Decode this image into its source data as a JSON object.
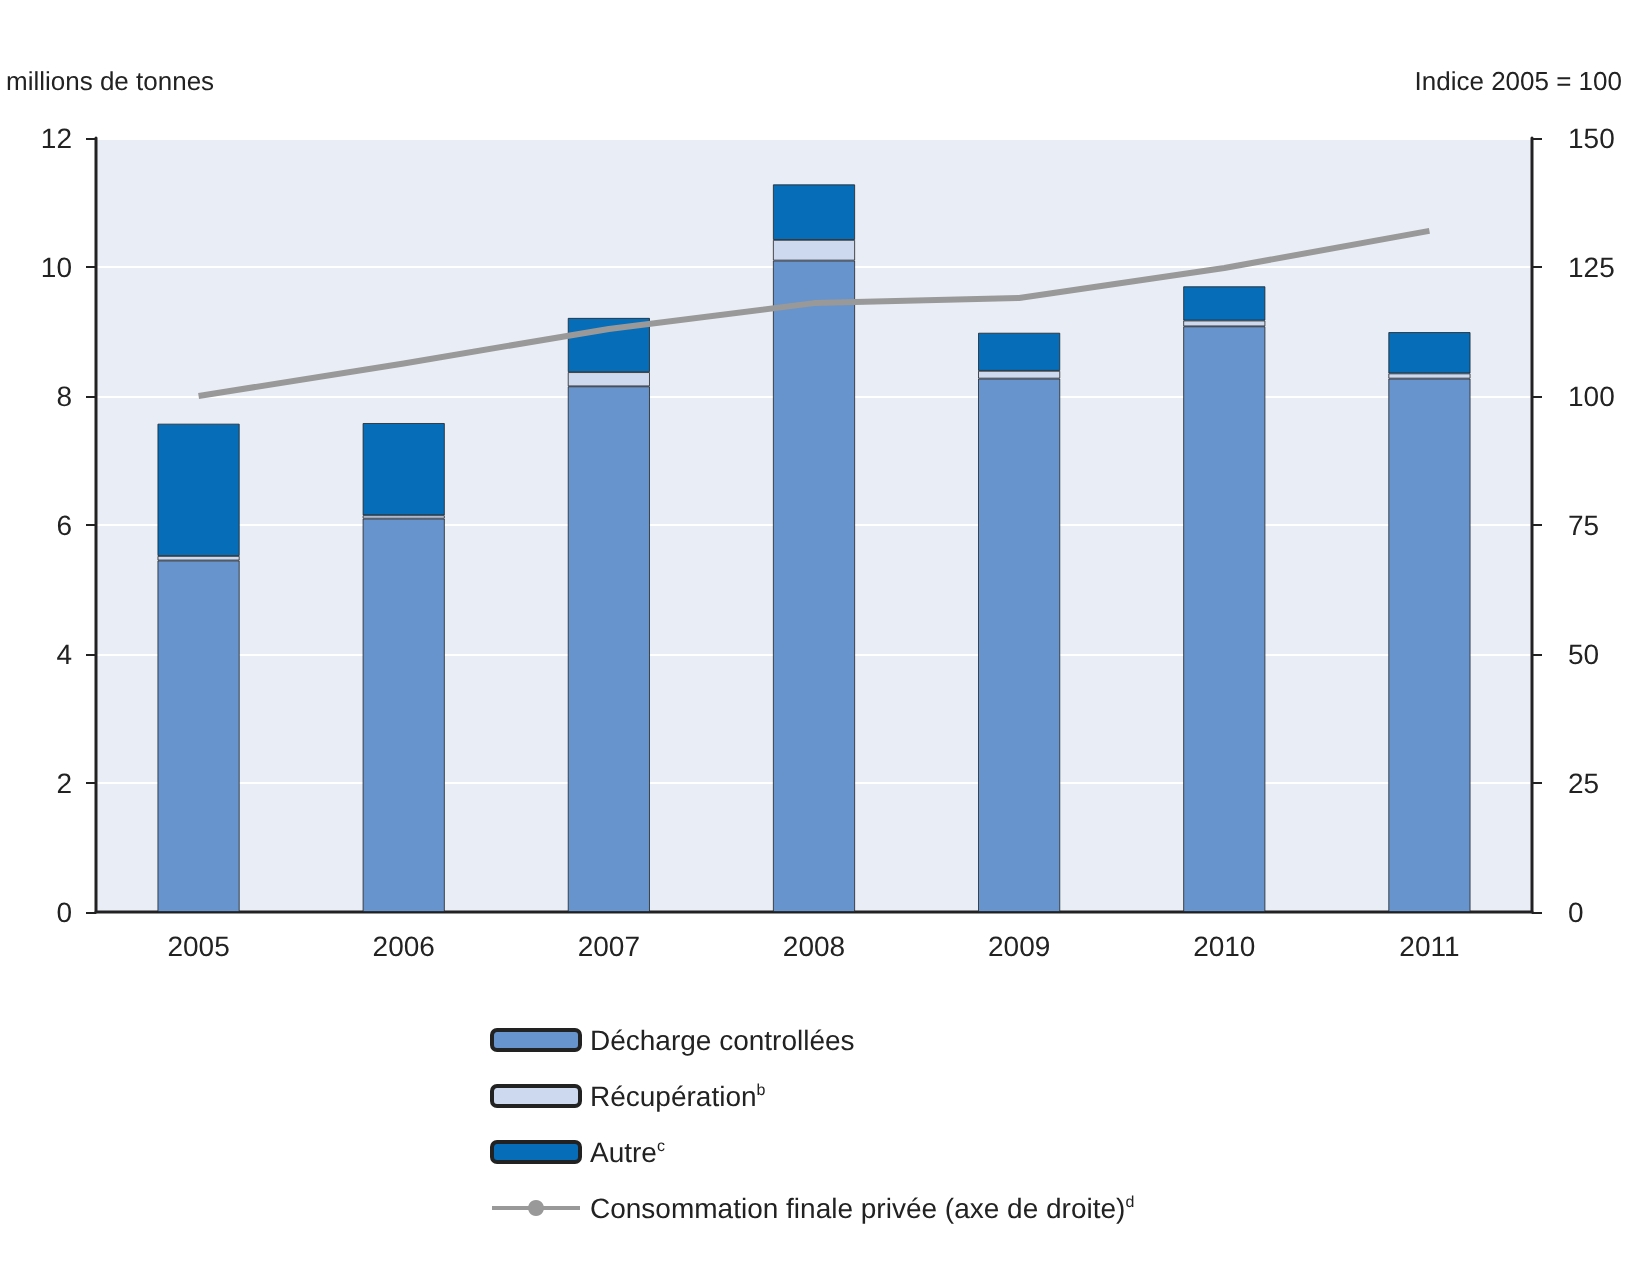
{
  "chart_data": {
    "type": "bar",
    "stacked": true,
    "ylabel": "millions de tonnes",
    "y2label": "Indice 2005 = 100",
    "categories": [
      "2005",
      "2006",
      "2007",
      "2008",
      "2009",
      "2010",
      "2011"
    ],
    "series": [
      {
        "name": "Décharge controllées",
        "color": "#6794cc",
        "values": [
          5.45,
          6.1,
          8.15,
          10.1,
          8.27,
          9.08,
          8.27
        ]
      },
      {
        "name": "Récupération$^{b}$",
        "color": "#cdd9ee",
        "values": [
          0.07,
          0.05,
          0.22,
          0.32,
          0.12,
          0.09,
          0.08
        ]
      },
      {
        "name": "Autre$^{c}$",
        "color": "#066db8",
        "values": [
          2.05,
          1.43,
          0.84,
          0.86,
          0.59,
          0.53,
          0.64
        ]
      },
      {
        "name": "Consommation finale privée (axe de droite)$^{d}$",
        "color": "#999999",
        "type": "line",
        "axis": "y2",
        "marker": "none",
        "values": [
          100,
          106.3,
          113,
          118,
          119,
          124.8,
          132
        ]
      }
    ],
    "ylim": [
      0,
      12
    ],
    "yticks": [
      0,
      2,
      4,
      6,
      8,
      10,
      12
    ],
    "y2lim": [
      0,
      150
    ],
    "y2ticks": [
      0,
      25,
      50,
      75,
      100,
      125,
      150
    ],
    "grid": "y",
    "legend": "bottom"
  }
}
